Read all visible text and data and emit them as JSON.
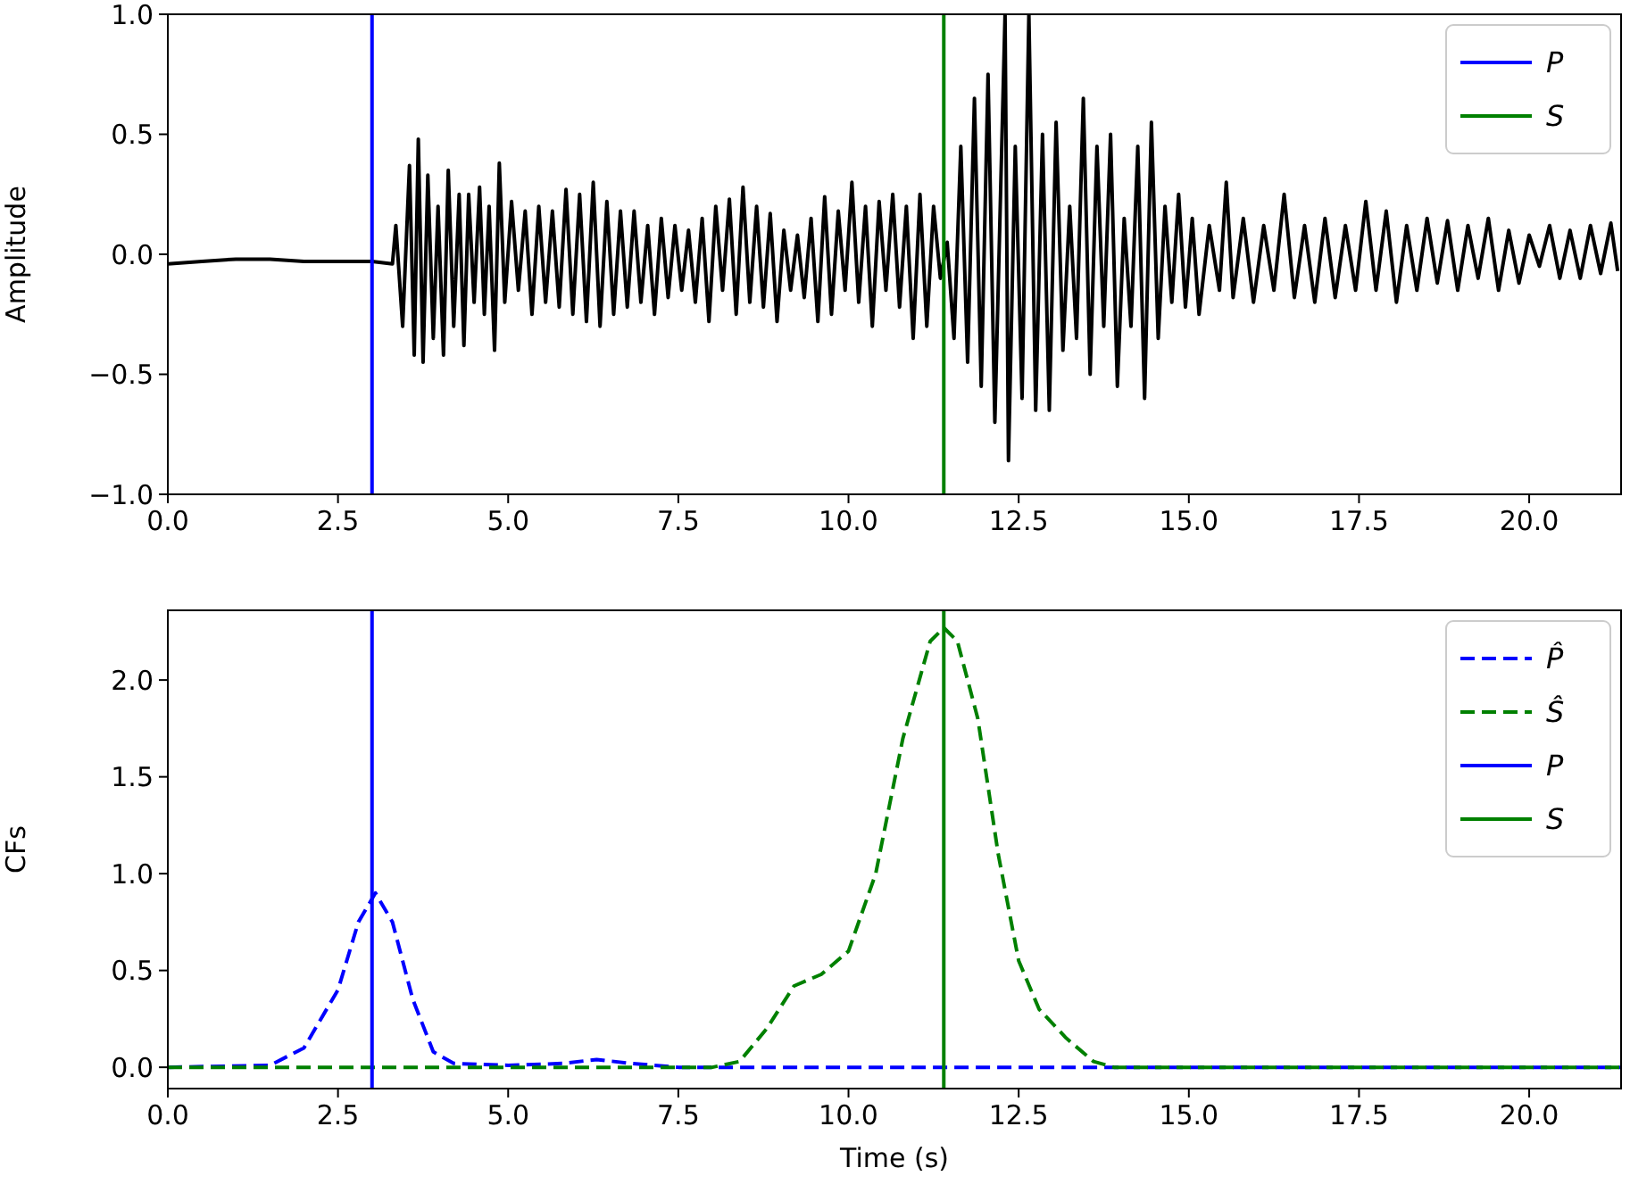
{
  "chart_data": [
    {
      "type": "line",
      "ylabel": "Amplitude",
      "xlim": [
        0,
        21.35
      ],
      "ylim": [
        -1,
        1
      ],
      "xticks": [
        {
          "value": 0,
          "label": "0.0"
        },
        {
          "value": 2.5,
          "label": "2.5"
        },
        {
          "value": 5,
          "label": "5.0"
        },
        {
          "value": 7.5,
          "label": "7.5"
        },
        {
          "value": 10,
          "label": "10.0"
        },
        {
          "value": 12.5,
          "label": "12.5"
        },
        {
          "value": 15,
          "label": "15.0"
        },
        {
          "value": 17.5,
          "label": "17.5"
        },
        {
          "value": 20,
          "label": "20.0"
        }
      ],
      "yticks": [
        {
          "value": -1,
          "label": "−1.0"
        },
        {
          "value": -0.5,
          "label": "−0.5"
        },
        {
          "value": 0,
          "label": "0.0"
        },
        {
          "value": 0.5,
          "label": "0.5"
        },
        {
          "value": 1,
          "label": "1.0"
        }
      ],
      "legend": "top right",
      "grid": false,
      "marker": "none",
      "series": [
        {
          "color": "#000000",
          "line_style": "solid",
          "x": [
            0,
            0.5,
            1,
            1.5,
            2,
            2.5,
            3,
            3.3,
            3.35,
            3.45,
            3.55,
            3.62,
            3.68,
            3.75,
            3.82,
            3.9,
            3.97,
            4.05,
            4.12,
            4.2,
            4.28,
            4.35,
            4.42,
            4.5,
            4.58,
            4.65,
            4.72,
            4.8,
            4.87,
            4.95,
            5.05,
            5.15,
            5.25,
            5.35,
            5.45,
            5.55,
            5.65,
            5.75,
            5.85,
            5.95,
            6.05,
            6.15,
            6.25,
            6.35,
            6.45,
            6.55,
            6.65,
            6.75,
            6.85,
            6.95,
            7.05,
            7.15,
            7.25,
            7.35,
            7.45,
            7.55,
            7.65,
            7.75,
            7.85,
            7.95,
            8.05,
            8.15,
            8.25,
            8.35,
            8.45,
            8.55,
            8.65,
            8.75,
            8.85,
            8.95,
            9.05,
            9.15,
            9.25,
            9.35,
            9.45,
            9.55,
            9.65,
            9.75,
            9.85,
            9.95,
            10.05,
            10.15,
            10.25,
            10.35,
            10.45,
            10.55,
            10.65,
            10.75,
            10.85,
            10.95,
            11.05,
            11.15,
            11.25,
            11.35,
            11.45,
            11.55,
            11.65,
            11.75,
            11.85,
            11.95,
            12.05,
            12.15,
            12.3,
            12.35,
            12.45,
            12.55,
            12.65,
            12.75,
            12.85,
            12.95,
            13.05,
            13.15,
            13.25,
            13.35,
            13.45,
            13.55,
            13.65,
            13.75,
            13.85,
            13.95,
            14.05,
            14.15,
            14.25,
            14.35,
            14.45,
            14.55,
            14.65,
            14.75,
            14.85,
            14.95,
            15.05,
            15.15,
            15.3,
            15.45,
            15.55,
            15.65,
            15.8,
            15.95,
            16.1,
            16.25,
            16.4,
            16.55,
            16.7,
            16.85,
            17,
            17.15,
            17.3,
            17.45,
            17.6,
            17.75,
            17.9,
            18.05,
            18.2,
            18.35,
            18.5,
            18.65,
            18.8,
            18.95,
            19.1,
            19.25,
            19.4,
            19.55,
            19.7,
            19.85,
            20,
            20.15,
            20.3,
            20.45,
            20.6,
            20.75,
            20.9,
            21.05,
            21.2,
            21.3
          ],
          "values": [
            -0.04,
            -0.03,
            -0.02,
            -0.02,
            -0.03,
            -0.03,
            -0.03,
            -0.04,
            0.12,
            -0.3,
            0.37,
            -0.42,
            0.48,
            -0.45,
            0.33,
            -0.35,
            0.2,
            -0.42,
            0.35,
            -0.3,
            0.25,
            -0.38,
            0.25,
            -0.2,
            0.28,
            -0.25,
            0.2,
            -0.4,
            0.38,
            -0.2,
            0.22,
            -0.15,
            0.18,
            -0.25,
            0.2,
            -0.2,
            0.18,
            -0.22,
            0.27,
            -0.25,
            0.25,
            -0.28,
            0.3,
            -0.3,
            0.22,
            -0.25,
            0.18,
            -0.22,
            0.18,
            -0.2,
            0.12,
            -0.25,
            0.15,
            -0.18,
            0.12,
            -0.15,
            0.1,
            -0.2,
            0.15,
            -0.28,
            0.2,
            -0.15,
            0.23,
            -0.25,
            0.28,
            -0.2,
            0.2,
            -0.22,
            0.17,
            -0.28,
            0.1,
            -0.15,
            0.08,
            -0.18,
            0.15,
            -0.28,
            0.24,
            -0.25,
            0.18,
            -0.15,
            0.3,
            -0.2,
            0.2,
            -0.3,
            0.22,
            -0.15,
            0.25,
            -0.22,
            0.2,
            -0.35,
            0.25,
            -0.3,
            0.2,
            -0.1,
            0.05,
            -0.35,
            0.45,
            -0.45,
            0.65,
            -0.55,
            0.75,
            -0.7,
            1,
            -0.86,
            0.45,
            -0.6,
            1,
            -0.65,
            0.5,
            -0.65,
            0.55,
            -0.4,
            0.2,
            -0.35,
            0.65,
            -0.5,
            0.45,
            -0.3,
            0.5,
            -0.55,
            0.15,
            -0.3,
            0.45,
            -0.6,
            0.55,
            -0.35,
            0.2,
            -0.2,
            0.25,
            -0.22,
            0.15,
            -0.25,
            0.12,
            -0.15,
            0.3,
            -0.18,
            0.15,
            -0.2,
            0.12,
            -0.15,
            0.25,
            -0.18,
            0.12,
            -0.2,
            0.15,
            -0.18,
            0.12,
            -0.15,
            0.22,
            -0.15,
            0.18,
            -0.2,
            0.12,
            -0.15,
            0.15,
            -0.12,
            0.14,
            -0.15,
            0.12,
            -0.1,
            0.15,
            -0.15,
            0.1,
            -0.12,
            0.08,
            -0.05,
            0.12,
            -0.1,
            0.1,
            -0.1,
            0.12,
            -0.08,
            0.13,
            -0.07
          ]
        },
        {
          "name": "P",
          "color": "#0000ff",
          "line_style": "solid",
          "x": [
            3,
            3
          ],
          "values": [
            -1,
            1
          ]
        },
        {
          "name": "S",
          "color": "#008000",
          "line_style": "solid",
          "x": [
            11.4,
            11.4
          ],
          "values": [
            -1,
            1
          ]
        }
      ]
    },
    {
      "type": "line",
      "xlabel": "Time (s)",
      "ylabel": "CFs",
      "xlim": [
        0,
        21.35
      ],
      "ylim": [
        -0.11,
        2.36
      ],
      "xticks": [
        {
          "value": 0,
          "label": "0.0"
        },
        {
          "value": 2.5,
          "label": "2.5"
        },
        {
          "value": 5,
          "label": "5.0"
        },
        {
          "value": 7.5,
          "label": "7.5"
        },
        {
          "value": 10,
          "label": "10.0"
        },
        {
          "value": 12.5,
          "label": "12.5"
        },
        {
          "value": 15,
          "label": "15.0"
        },
        {
          "value": 17.5,
          "label": "17.5"
        },
        {
          "value": 20,
          "label": "20.0"
        }
      ],
      "yticks": [
        {
          "value": 0,
          "label": "0.0"
        },
        {
          "value": 0.5,
          "label": "0.5"
        },
        {
          "value": 1,
          "label": "1.0"
        },
        {
          "value": 1.5,
          "label": "1.5"
        },
        {
          "value": 2,
          "label": "2.0"
        }
      ],
      "legend": "top right",
      "grid": false,
      "marker": "none",
      "series": [
        {
          "name": "P̂",
          "color": "#0000ff",
          "line_style": "dashed",
          "x": [
            0,
            1.5,
            2,
            2.5,
            2.8,
            3.05,
            3.3,
            3.6,
            3.9,
            4.2,
            5,
            5.8,
            6.3,
            6.8,
            7.5,
            10,
            15,
            21.35
          ],
          "values": [
            0,
            0.01,
            0.1,
            0.4,
            0.75,
            0.9,
            0.75,
            0.35,
            0.08,
            0.02,
            0.01,
            0.02,
            0.04,
            0.02,
            0,
            0,
            0,
            0
          ]
        },
        {
          "name": "Ŝ",
          "color": "#008000",
          "line_style": "dashed",
          "x": [
            0,
            4,
            8,
            8.4,
            8.8,
            9.2,
            9.6,
            10,
            10.4,
            10.8,
            11.2,
            11.4,
            11.6,
            11.9,
            12.2,
            12.5,
            12.8,
            13.2,
            13.6,
            13.9,
            21.35
          ],
          "values": [
            0,
            0,
            0,
            0.03,
            0.2,
            0.42,
            0.48,
            0.6,
            1,
            1.7,
            2.2,
            2.27,
            2.2,
            1.8,
            1.1,
            0.55,
            0.3,
            0.15,
            0.03,
            0,
            0
          ]
        },
        {
          "name": "P",
          "color": "#0000ff",
          "line_style": "solid",
          "x": [
            3,
            3
          ],
          "values": [
            -0.11,
            2.36
          ]
        },
        {
          "name": "S",
          "color": "#008000",
          "line_style": "solid",
          "x": [
            11.4,
            11.4
          ],
          "values": [
            -0.11,
            2.36
          ]
        }
      ]
    }
  ]
}
